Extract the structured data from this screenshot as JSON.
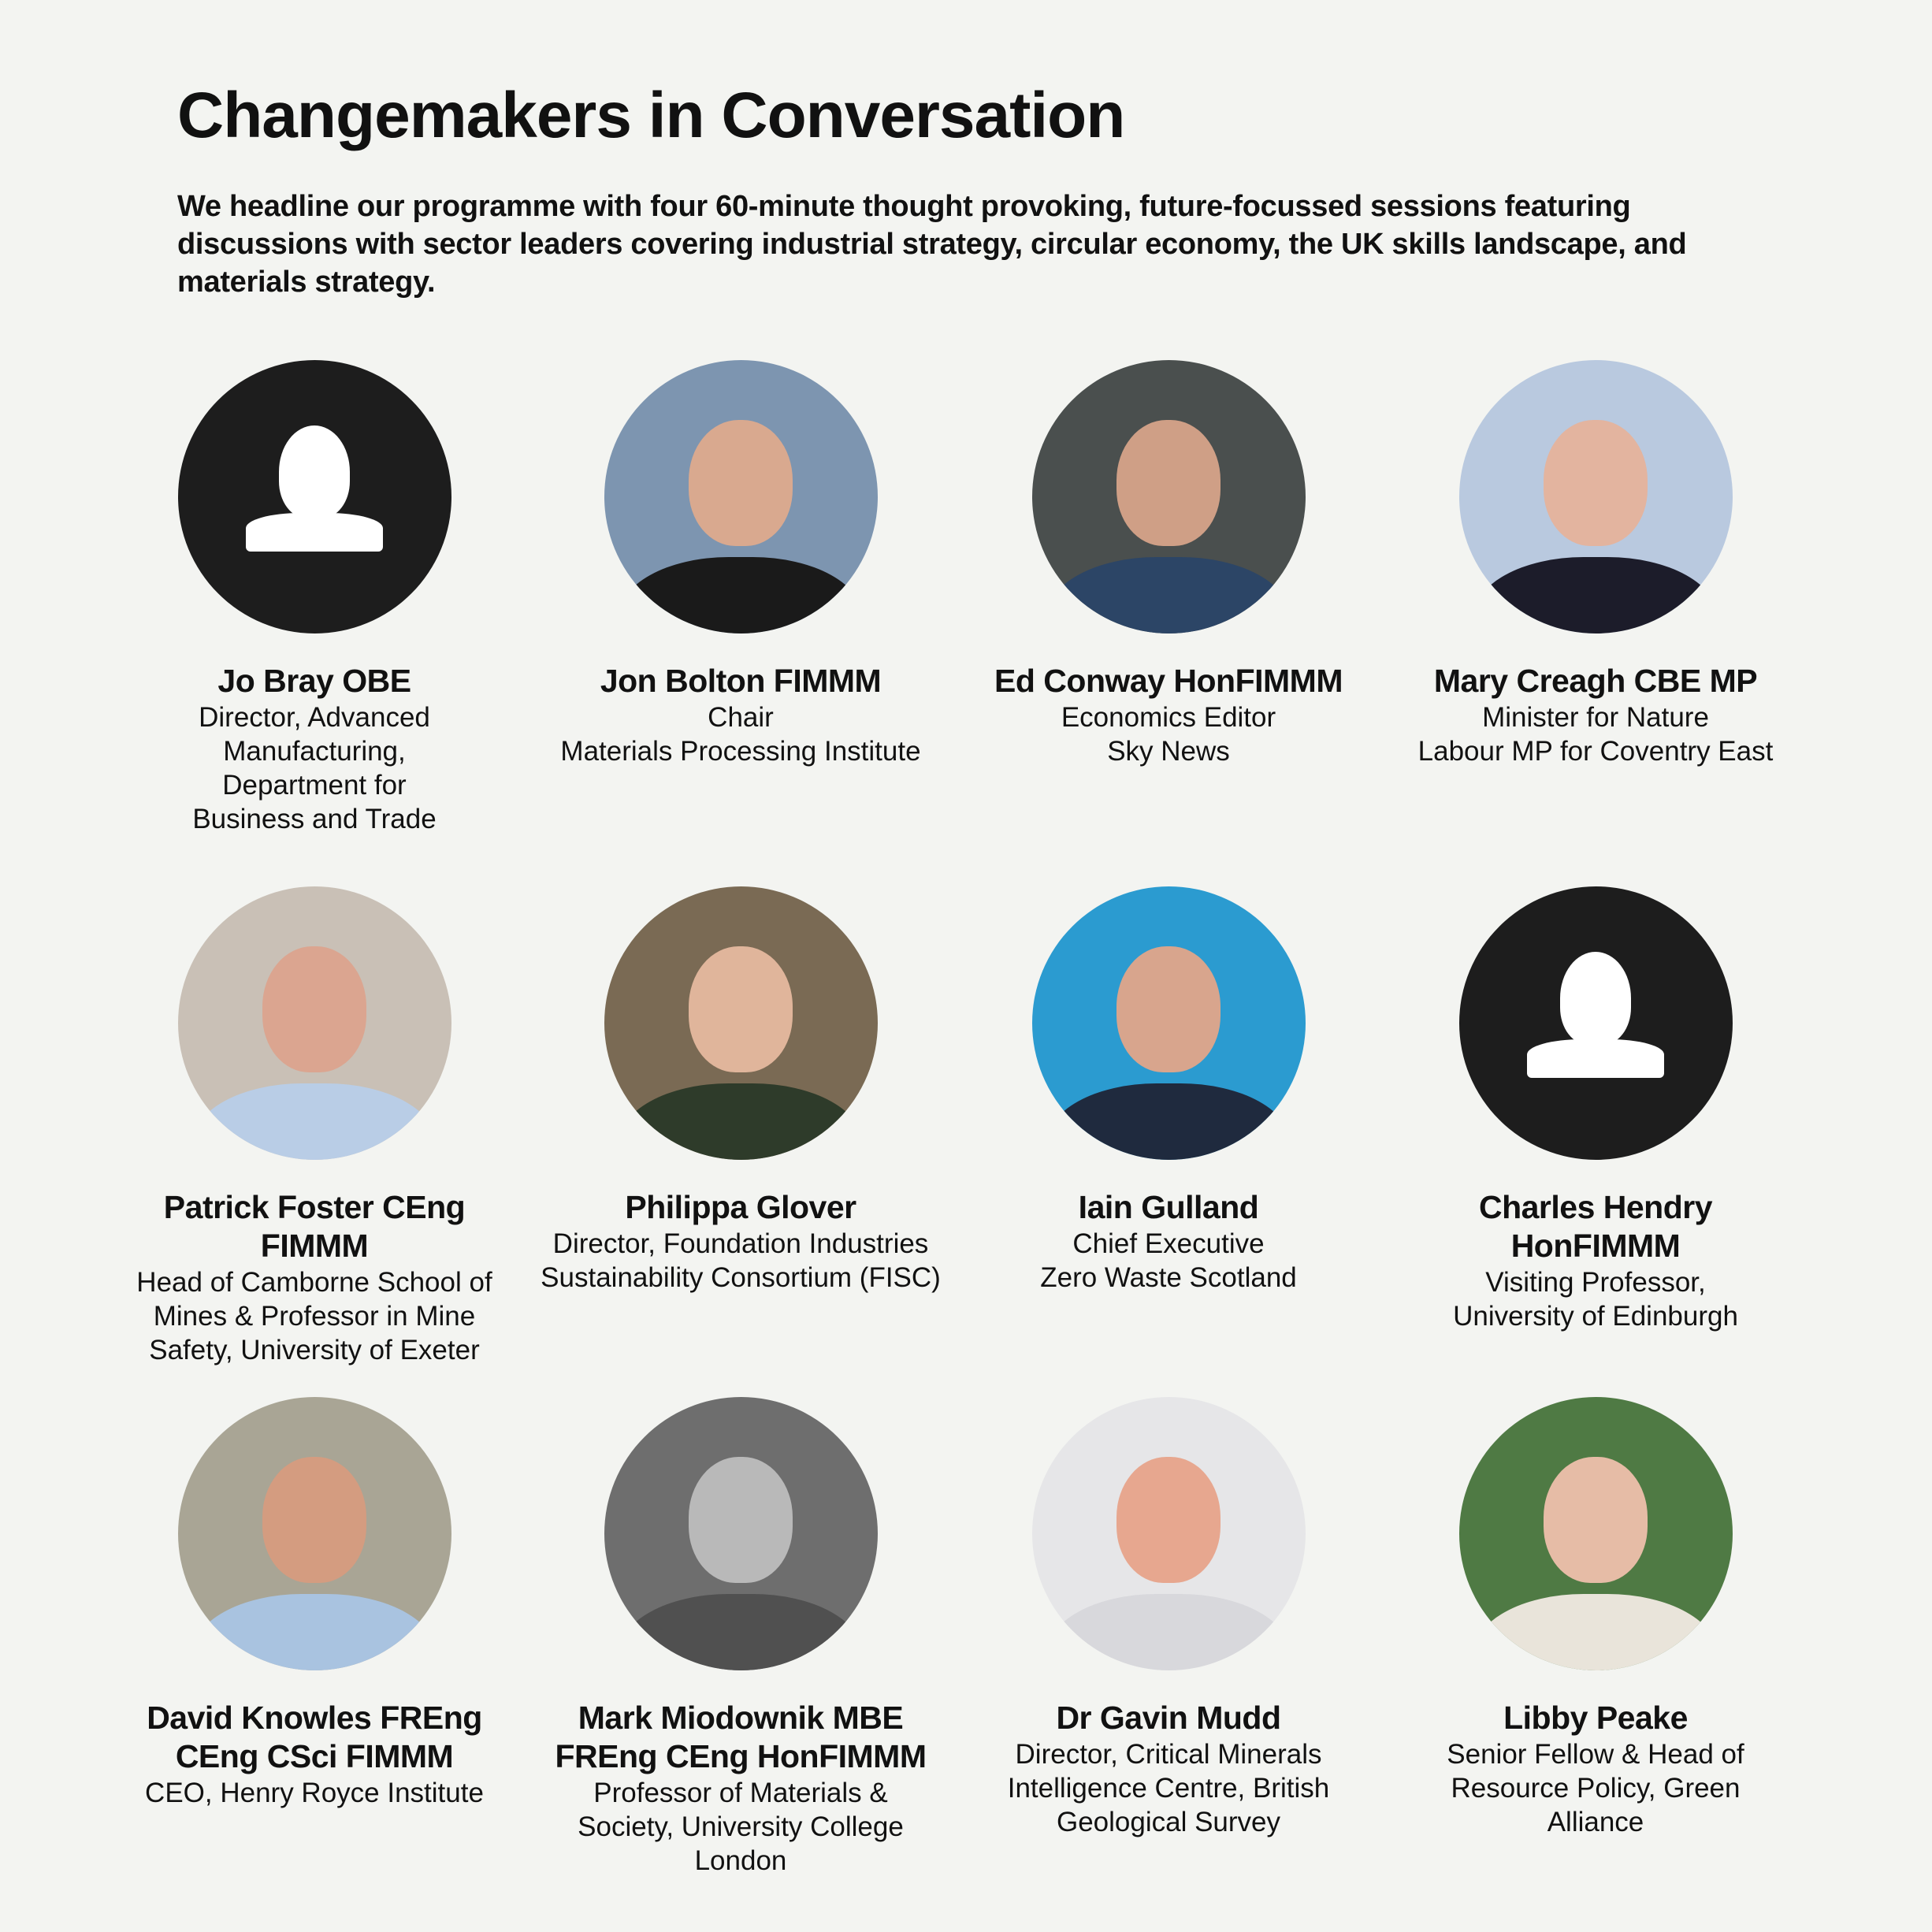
{
  "header": {
    "title": "Changemakers in Conversation",
    "intro": "We headline our programme with four 60-minute thought provoking, future-focussed sessions featuring discussions with sector leaders covering industrial strategy, circular economy, the UK skills landscape, and materials strategy."
  },
  "speakers": [
    {
      "name": "Jo Bray OBE",
      "role": "Director, Advanced Manufacturing, Department for Business and Trade",
      "photo": "placeholder-avatar-icon"
    },
    {
      "name": "Jon Bolton FIMMM",
      "role": "Chair\nMaterials Processing Institute",
      "photo": "photo"
    },
    {
      "name": "Ed Conway HonFIMMM",
      "role": "Economics Editor\nSky News",
      "photo": "photo"
    },
    {
      "name": "Mary Creagh CBE MP",
      "role": "Minister for Nature\nLabour MP for Coventry East",
      "photo": "photo"
    },
    {
      "name": "Patrick Foster CEng FIMMM",
      "role": "Head of Camborne School of Mines & Professor in Mine Safety, University of Exeter",
      "photo": "photo"
    },
    {
      "name": "Philippa Glover",
      "role": "Director, Foundation Industries Sustainability Consortium (FISC)",
      "photo": "photo"
    },
    {
      "name": "Iain Gulland",
      "role": "Chief Executive\nZero Waste Scotland",
      "photo": "photo"
    },
    {
      "name": "Charles Hendry HonFIMMM",
      "role": "Visiting Professor, University of Edinburgh",
      "photo": "placeholder-avatar-icon"
    },
    {
      "name": "David Knowles FREng CEng CSci FIMMM",
      "role": "CEO, Henry Royce Institute",
      "photo": "photo"
    },
    {
      "name": "Mark Miodownik MBE FREng CEng HonFIMMM",
      "role": "Professor of Materials & Society, University College London",
      "photo": "photo"
    },
    {
      "name": "Dr Gavin Mudd",
      "role": "Director, Critical Minerals Intelligence Centre, British Geological Survey",
      "photo": "photo"
    },
    {
      "name": "Libby Peake",
      "role": "Senior Fellow & Head of Resource Policy, Green Alliance",
      "photo": "photo"
    }
  ]
}
